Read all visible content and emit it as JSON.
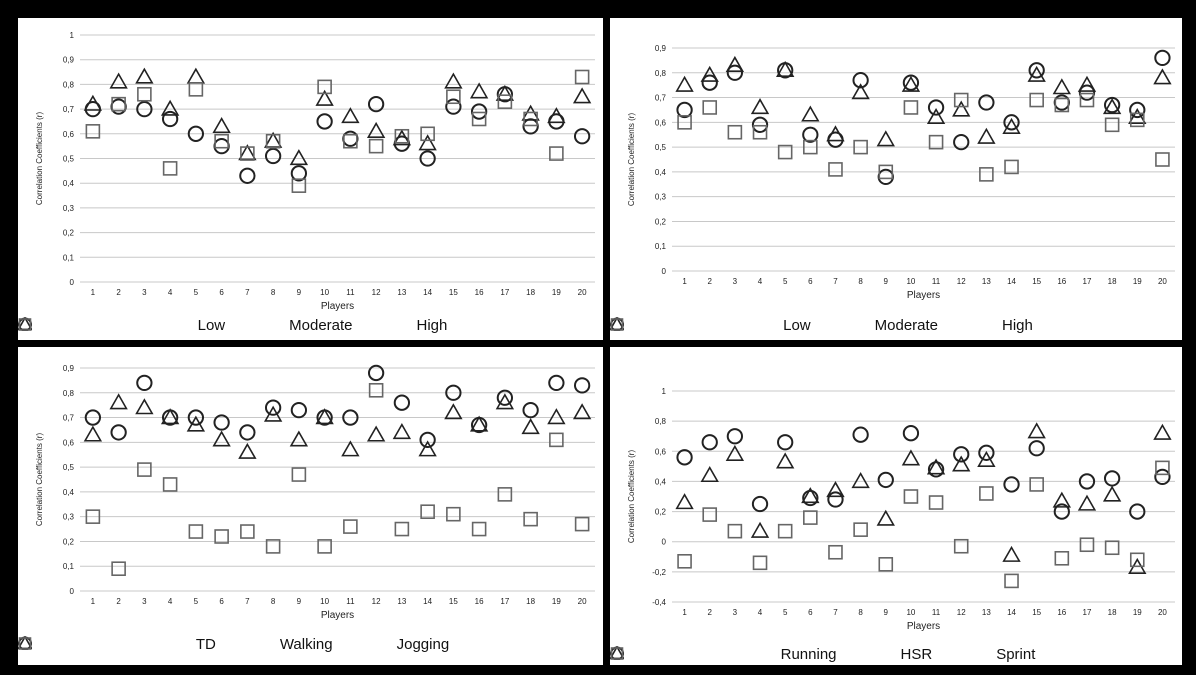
{
  "chart_data": [
    {
      "type": "scatter",
      "xlabel": "Players",
      "ylabel": "Correlation Coefficients (r)",
      "x": [
        1,
        2,
        3,
        4,
        5,
        6,
        7,
        8,
        9,
        10,
        11,
        12,
        13,
        14,
        15,
        16,
        17,
        18,
        19,
        20
      ],
      "ylim": [
        0,
        1
      ],
      "yticks": [
        "0",
        "0,1",
        "0,2",
        "0,3",
        "0,4",
        "0,5",
        "0,6",
        "0,7",
        "0,8",
        "0,9",
        "1"
      ],
      "ytick_values": [
        0,
        0.1,
        0.2,
        0.3,
        0.4,
        0.5,
        0.6,
        0.7,
        0.8,
        0.9,
        1
      ],
      "grid": true,
      "legend_position": "bottom",
      "series": [
        {
          "name": "Low",
          "marker": "circle",
          "values": [
            0.7,
            0.71,
            0.7,
            0.66,
            0.6,
            0.55,
            0.43,
            0.51,
            0.44,
            0.65,
            0.58,
            0.72,
            0.56,
            0.5,
            0.71,
            0.69,
            0.76,
            0.63,
            0.65,
            0.59
          ]
        },
        {
          "name": "Moderate",
          "marker": "triangle",
          "values": [
            0.72,
            0.81,
            0.83,
            0.7,
            0.83,
            0.63,
            0.52,
            0.57,
            0.5,
            0.74,
            0.67,
            0.61,
            0.58,
            0.56,
            0.81,
            0.77,
            0.76,
            0.68,
            0.67,
            0.75
          ]
        },
        {
          "name": "High",
          "marker": "square",
          "values": [
            0.61,
            0.72,
            0.76,
            0.46,
            0.78,
            0.57,
            0.52,
            0.57,
            0.39,
            0.79,
            0.57,
            0.55,
            0.59,
            0.6,
            0.75,
            0.66,
            0.73,
            0.66,
            0.52,
            0.83
          ]
        }
      ]
    },
    {
      "type": "scatter",
      "xlabel": "Players",
      "ylabel": "Correlation Coefficients (r)",
      "x": [
        1,
        2,
        3,
        4,
        5,
        6,
        7,
        8,
        9,
        10,
        11,
        12,
        13,
        14,
        15,
        16,
        17,
        18,
        19,
        20
      ],
      "ylim": [
        0,
        0.9
      ],
      "yticks": [
        "0",
        "0,1",
        "0,2",
        "0,3",
        "0,4",
        "0,5",
        "0,6",
        "0,7",
        "0,8",
        "0,9"
      ],
      "ytick_values": [
        0,
        0.1,
        0.2,
        0.3,
        0.4,
        0.5,
        0.6,
        0.7,
        0.8,
        0.9
      ],
      "grid": true,
      "legend_position": "bottom",
      "series": [
        {
          "name": "Low",
          "marker": "circle",
          "values": [
            0.65,
            0.76,
            0.8,
            0.59,
            0.81,
            0.55,
            0.53,
            0.77,
            0.38,
            0.76,
            0.66,
            0.52,
            0.68,
            0.6,
            0.81,
            0.68,
            0.72,
            0.67,
            0.65,
            0.86
          ]
        },
        {
          "name": "Moderate",
          "marker": "triangle",
          "values": [
            0.75,
            0.79,
            0.83,
            0.66,
            0.81,
            0.63,
            0.55,
            0.72,
            0.53,
            0.75,
            0.62,
            0.65,
            0.54,
            0.58,
            0.79,
            0.74,
            0.75,
            0.66,
            0.62,
            0.78
          ]
        },
        {
          "name": "High",
          "marker": "square",
          "values": [
            0.6,
            0.66,
            0.56,
            0.56,
            0.48,
            0.5,
            0.41,
            0.5,
            0.4,
            0.66,
            0.52,
            0.69,
            0.39,
            0.42,
            0.69,
            0.67,
            0.69,
            0.59,
            0.61,
            0.45
          ]
        }
      ]
    },
    {
      "type": "scatter",
      "xlabel": "Players",
      "ylabel": "Correlation Coefficients (r)",
      "x": [
        1,
        2,
        3,
        4,
        5,
        6,
        7,
        8,
        9,
        10,
        11,
        12,
        13,
        14,
        15,
        16,
        17,
        18,
        19,
        20
      ],
      "ylim": [
        0,
        0.9
      ],
      "yticks": [
        "0",
        "0,1",
        "0,2",
        "0,3",
        "0,4",
        "0,5",
        "0,6",
        "0,7",
        "0,8",
        "0,9"
      ],
      "ytick_values": [
        0,
        0.1,
        0.2,
        0.3,
        0.4,
        0.5,
        0.6,
        0.7,
        0.8,
        0.9
      ],
      "grid": true,
      "legend_position": "bottom",
      "series": [
        {
          "name": "TD",
          "marker": "circle",
          "values": [
            0.7,
            0.64,
            0.84,
            0.7,
            0.7,
            0.68,
            0.64,
            0.74,
            0.73,
            0.7,
            0.7,
            0.88,
            0.76,
            0.61,
            0.8,
            0.67,
            0.78,
            0.73,
            0.84,
            0.83
          ]
        },
        {
          "name": "Walking",
          "marker": "triangle",
          "values": [
            0.63,
            0.76,
            0.74,
            0.7,
            0.67,
            0.61,
            0.56,
            0.71,
            0.61,
            0.7,
            0.57,
            0.63,
            0.64,
            0.57,
            0.72,
            0.67,
            0.76,
            0.66,
            0.7,
            0.72
          ]
        },
        {
          "name": "Jogging",
          "marker": "square",
          "values": [
            0.3,
            0.09,
            0.49,
            0.43,
            0.24,
            0.22,
            0.24,
            0.18,
            0.47,
            0.18,
            0.26,
            0.81,
            0.25,
            0.32,
            0.31,
            0.25,
            0.39,
            0.29,
            0.61,
            0.27
          ]
        }
      ]
    },
    {
      "type": "scatter",
      "xlabel": "Players",
      "ylabel": "Correlation Coefficients (r)",
      "x": [
        1,
        2,
        3,
        4,
        5,
        6,
        7,
        8,
        9,
        10,
        11,
        12,
        13,
        14,
        15,
        16,
        17,
        18,
        19,
        20
      ],
      "ylim": [
        -0.4,
        1
      ],
      "yticks": [
        "-0,4",
        "-0,2",
        "0",
        "0,2",
        "0,4",
        "0,6",
        "0,8",
        "1"
      ],
      "ytick_values": [
        -0.4,
        -0.2,
        0,
        0.2,
        0.4,
        0.6,
        0.8,
        1
      ],
      "grid": true,
      "legend_position": "bottom",
      "series": [
        {
          "name": "Running",
          "marker": "circle",
          "values": [
            0.56,
            0.66,
            0.7,
            0.25,
            0.66,
            0.29,
            0.28,
            0.71,
            0.41,
            0.72,
            0.48,
            0.58,
            0.59,
            0.38,
            0.62,
            0.2,
            0.4,
            0.42,
            0.2,
            0.43
          ]
        },
        {
          "name": "HSR",
          "marker": "triangle",
          "values": [
            0.26,
            0.44,
            0.58,
            0.07,
            0.53,
            0.3,
            0.34,
            0.4,
            0.15,
            0.55,
            0.49,
            0.51,
            0.54,
            -0.09,
            0.73,
            0.27,
            0.25,
            0.31,
            -0.17,
            0.72
          ]
        },
        {
          "name": "Sprint",
          "marker": "square",
          "values": [
            -0.13,
            0.18,
            0.07,
            -0.14,
            0.07,
            0.16,
            -0.07,
            0.08,
            -0.15,
            0.3,
            0.26,
            -0.03,
            0.32,
            -0.26,
            0.38,
            -0.11,
            -0.02,
            -0.04,
            -0.12,
            0.49
          ]
        }
      ]
    }
  ]
}
